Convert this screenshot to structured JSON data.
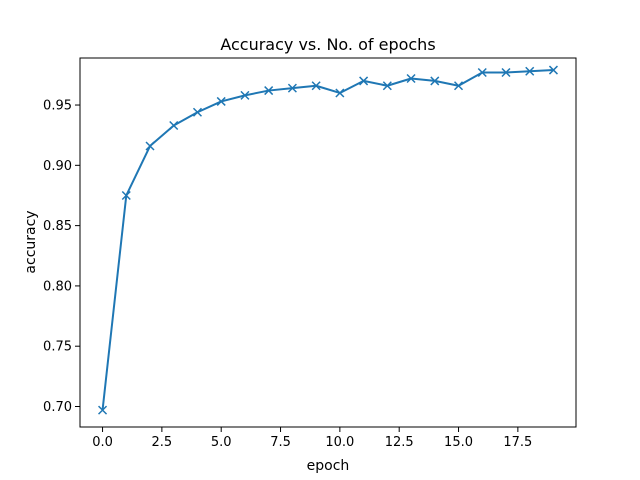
{
  "chart_data": {
    "type": "line",
    "title": "Accuracy vs. No. of epochs",
    "xlabel": "epoch",
    "ylabel": "accuracy",
    "xlim": [
      -0.95,
      19.95
    ],
    "ylim": [
      0.683,
      0.989
    ],
    "xticks": [
      0.0,
      2.5,
      5.0,
      7.5,
      10.0,
      12.5,
      15.0,
      17.5
    ],
    "xtick_labels": [
      "0.0",
      "2.5",
      "5.0",
      "7.5",
      "10.0",
      "12.5",
      "15.0",
      "17.5"
    ],
    "yticks": [
      0.7,
      0.75,
      0.8,
      0.85,
      0.9,
      0.95
    ],
    "ytick_labels": [
      "0.70",
      "0.75",
      "0.80",
      "0.85",
      "0.90",
      "0.95"
    ],
    "grid": false,
    "marker": "x",
    "color": "#1f77b4",
    "series": [
      {
        "x": [
          0,
          1,
          2,
          3,
          4,
          5,
          6,
          7,
          8,
          9,
          10,
          11,
          12,
          13,
          14,
          15,
          16,
          17,
          18,
          19
        ],
        "values": [
          0.697,
          0.875,
          0.916,
          0.933,
          0.944,
          0.953,
          0.958,
          0.962,
          0.964,
          0.966,
          0.96,
          0.97,
          0.966,
          0.972,
          0.97,
          0.966,
          0.977,
          0.977,
          0.978,
          0.979
        ]
      }
    ]
  }
}
